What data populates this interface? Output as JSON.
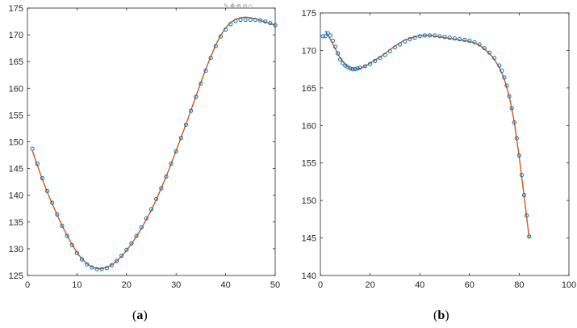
{
  "figure": {
    "panel_labels": [
      {
        "open": "(",
        "letter": "a",
        "close": ")"
      },
      {
        "open": "(",
        "letter": "b",
        "close": ")"
      }
    ],
    "toolbar_icons": [
      "brush-icon",
      "pan-icon",
      "zoom-in-icon",
      "zoom-out-icon",
      "home-icon"
    ]
  },
  "chart_data": [
    {
      "type": "scatter",
      "title": "",
      "xlabel": "",
      "ylabel": "",
      "xlim": [
        0,
        50
      ],
      "ylim": [
        125,
        175
      ],
      "xticks": [
        0,
        10,
        20,
        30,
        40,
        50
      ],
      "yticks": [
        125,
        130,
        135,
        140,
        145,
        150,
        155,
        160,
        165,
        170,
        175
      ],
      "grid": false,
      "series": [
        {
          "kind": "markers",
          "color": "#0072BD",
          "points": [
            [
              1,
              148.7
            ],
            [
              2,
              145.9
            ],
            [
              3,
              143.2
            ],
            [
              4,
              140.8
            ],
            [
              5,
              138.6
            ],
            [
              6,
              136.4
            ],
            [
              7,
              134.3
            ],
            [
              8,
              132.4
            ],
            [
              9,
              130.7
            ],
            [
              10,
              129.2
            ],
            [
              11,
              128.0
            ],
            [
              12,
              127.1
            ],
            [
              13,
              126.5
            ],
            [
              14,
              126.2
            ],
            [
              15,
              126.2
            ],
            [
              16,
              126.4
            ],
            [
              17,
              126.9
            ],
            [
              18,
              127.7
            ],
            [
              19,
              128.7
            ],
            [
              20,
              129.8
            ],
            [
              21,
              131.0
            ],
            [
              22,
              132.4
            ],
            [
              23,
              134.0
            ],
            [
              24,
              135.7
            ],
            [
              25,
              137.4
            ],
            [
              26,
              139.3
            ],
            [
              27,
              141.3
            ],
            [
              28,
              143.5
            ],
            [
              29,
              145.9
            ],
            [
              30,
              148.2
            ],
            [
              31,
              150.7
            ],
            [
              32,
              153.2
            ],
            [
              33,
              155.8
            ],
            [
              34,
              158.4
            ],
            [
              35,
              160.9
            ],
            [
              36,
              163.3
            ],
            [
              37,
              165.7
            ],
            [
              38,
              167.9
            ],
            [
              39,
              169.7
            ],
            [
              40,
              171.0
            ],
            [
              41,
              172.0
            ],
            [
              42,
              172.6
            ],
            [
              43,
              172.8
            ],
            [
              44,
              172.8
            ],
            [
              45,
              172.8
            ],
            [
              46,
              172.8
            ],
            [
              47,
              172.7
            ],
            [
              48,
              172.5
            ],
            [
              49,
              172.2
            ],
            [
              50,
              171.8
            ]
          ]
        },
        {
          "kind": "fit-line",
          "color": "#D95319",
          "points": [
            [
              1,
              148.3
            ],
            [
              2,
              145.6
            ],
            [
              3,
              143.0
            ],
            [
              4,
              140.6
            ],
            [
              5,
              138.4
            ],
            [
              6,
              136.3
            ],
            [
              7,
              134.3
            ],
            [
              8,
              132.5
            ],
            [
              9,
              130.8
            ],
            [
              10,
              129.3
            ],
            [
              11,
              128.1
            ],
            [
              12,
              127.2
            ],
            [
              13,
              126.6
            ],
            [
              14,
              126.3
            ],
            [
              15,
              126.3
            ],
            [
              16,
              126.5
            ],
            [
              17,
              127.0
            ],
            [
              18,
              127.7
            ],
            [
              19,
              128.6
            ],
            [
              20,
              129.7
            ],
            [
              21,
              130.9
            ],
            [
              22,
              132.3
            ],
            [
              23,
              133.8
            ],
            [
              24,
              135.5
            ],
            [
              25,
              137.2
            ],
            [
              26,
              139.2
            ],
            [
              27,
              141.3
            ],
            [
              28,
              143.5
            ],
            [
              29,
              145.9
            ],
            [
              30,
              148.3
            ],
            [
              31,
              150.8
            ],
            [
              32,
              153.3
            ],
            [
              33,
              155.9
            ],
            [
              34,
              158.5
            ],
            [
              35,
              161.1
            ],
            [
              36,
              163.6
            ],
            [
              37,
              165.9
            ],
            [
              38,
              168.1
            ],
            [
              39,
              169.9
            ],
            [
              40,
              171.3
            ],
            [
              41,
              172.3
            ],
            [
              42,
              172.9
            ],
            [
              43,
              173.2
            ],
            [
              44,
              173.3
            ],
            [
              45,
              173.2
            ],
            [
              46,
              173.0
            ],
            [
              47,
              172.7
            ],
            [
              48,
              172.4
            ],
            [
              49,
              172.1
            ],
            [
              50,
              171.8
            ]
          ]
        }
      ]
    },
    {
      "type": "scatter",
      "title": "",
      "xlabel": "",
      "ylabel": "",
      "xlim": [
        0,
        100
      ],
      "ylim": [
        140,
        175
      ],
      "xticks": [
        0,
        20,
        40,
        60,
        80,
        100
      ],
      "yticks": [
        140,
        145,
        150,
        155,
        160,
        165,
        170,
        175
      ],
      "grid": false,
      "series": [
        {
          "kind": "markers",
          "color": "#0072BD",
          "points": [
            [
              1,
              171.9
            ],
            [
              2,
              171.9
            ],
            [
              3,
              172.3
            ],
            [
              4,
              172.0
            ],
            [
              5,
              171.3
            ],
            [
              6,
              170.5
            ],
            [
              7,
              169.6
            ],
            [
              8,
              168.8
            ],
            [
              9,
              168.3
            ],
            [
              10,
              168.0
            ],
            [
              11,
              167.8
            ],
            [
              12,
              167.6
            ],
            [
              13,
              167.5
            ],
            [
              14,
              167.5
            ],
            [
              15,
              167.6
            ],
            [
              16,
              167.7
            ],
            [
              18,
              167.9
            ],
            [
              20,
              168.2
            ],
            [
              22,
              168.6
            ],
            [
              24,
              169.0
            ],
            [
              26,
              169.4
            ],
            [
              28,
              169.9
            ],
            [
              30,
              170.4
            ],
            [
              32,
              170.8
            ],
            [
              34,
              171.2
            ],
            [
              36,
              171.5
            ],
            [
              38,
              171.7
            ],
            [
              40,
              171.9
            ],
            [
              42,
              172.0
            ],
            [
              44,
              172.0
            ],
            [
              46,
              172.0
            ],
            [
              48,
              171.9
            ],
            [
              50,
              171.8
            ],
            [
              52,
              171.7
            ],
            [
              54,
              171.6
            ],
            [
              56,
              171.5
            ],
            [
              58,
              171.4
            ],
            [
              60,
              171.3
            ],
            [
              62,
              171.1
            ],
            [
              64,
              170.8
            ],
            [
              66,
              170.3
            ],
            [
              68,
              169.7
            ],
            [
              70,
              169.0
            ],
            [
              72,
              168.0
            ],
            [
              73,
              167.3
            ],
            [
              74,
              166.4
            ],
            [
              75,
              165.3
            ],
            [
              76,
              163.9
            ],
            [
              77,
              162.3
            ],
            [
              78,
              160.4
            ],
            [
              79,
              158.3
            ],
            [
              80,
              156.0
            ],
            [
              81,
              153.4
            ],
            [
              82,
              150.7
            ],
            [
              83,
              148.0
            ],
            [
              84,
              145.2
            ]
          ]
        },
        {
          "kind": "fit-line",
          "color": "#D95319",
          "points": [
            [
              2,
              172.6
            ],
            [
              4,
              171.5
            ],
            [
              6,
              170.2
            ],
            [
              8,
              169.0
            ],
            [
              10,
              168.1
            ],
            [
              12,
              167.6
            ],
            [
              14,
              167.5
            ],
            [
              16,
              167.6
            ],
            [
              18,
              167.9
            ],
            [
              20,
              168.3
            ],
            [
              22,
              168.7
            ],
            [
              24,
              169.1
            ],
            [
              26,
              169.6
            ],
            [
              28,
              170.1
            ],
            [
              30,
              170.6
            ],
            [
              32,
              171.0
            ],
            [
              34,
              171.4
            ],
            [
              36,
              171.6
            ],
            [
              38,
              171.8
            ],
            [
              40,
              172.0
            ],
            [
              42,
              172.0
            ],
            [
              44,
              172.0
            ],
            [
              46,
              171.9
            ],
            [
              48,
              171.8
            ],
            [
              50,
              171.7
            ],
            [
              52,
              171.6
            ],
            [
              54,
              171.5
            ],
            [
              56,
              171.4
            ],
            [
              58,
              171.3
            ],
            [
              60,
              171.2
            ],
            [
              62,
              171.0
            ],
            [
              64,
              170.7
            ],
            [
              66,
              170.2
            ],
            [
              68,
              169.6
            ],
            [
              70,
              168.8
            ],
            [
              72,
              167.7
            ],
            [
              74,
              166.2
            ],
            [
              76,
              163.9
            ],
            [
              78,
              160.5
            ],
            [
              80,
              155.8
            ],
            [
              82,
              150.5
            ],
            [
              84,
              145.0
            ]
          ]
        }
      ]
    }
  ]
}
